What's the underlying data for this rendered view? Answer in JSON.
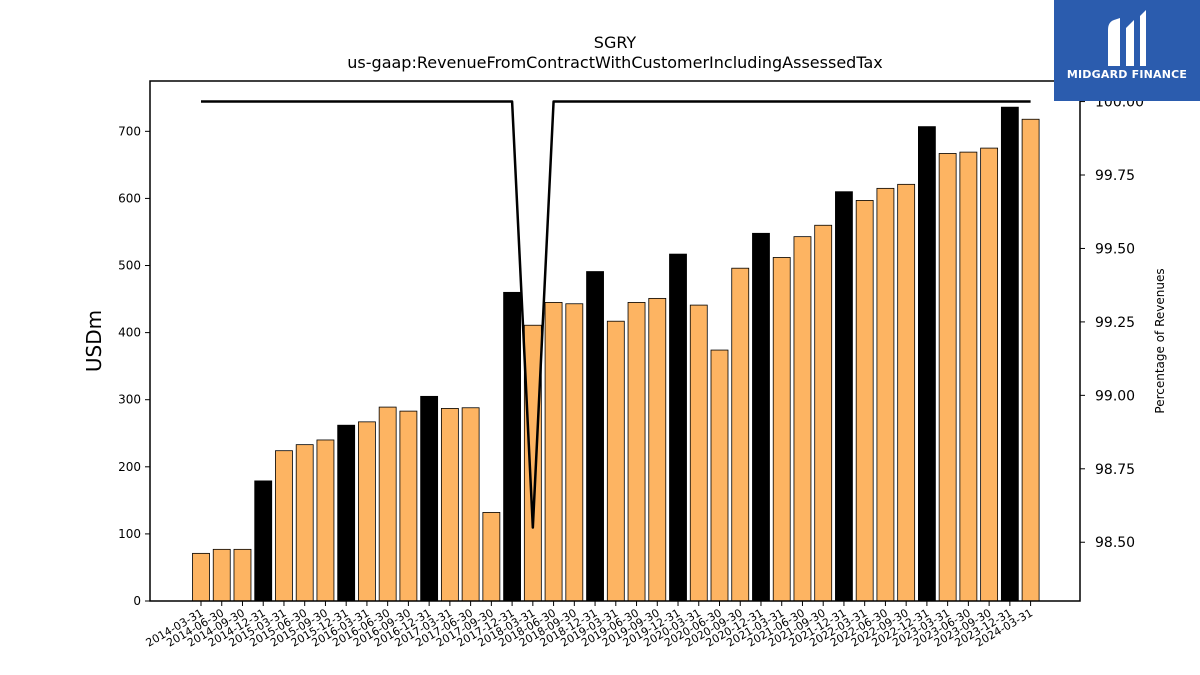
{
  "chart_data": {
    "type": "bar",
    "title": "SGRY",
    "subtitle": "us-gaap:RevenueFromContractWithCustomerIncludingAssessedTax",
    "ylabel": "USDm",
    "ylabel_right": "Percentage of Revenues",
    "ylim": [
      0,
      775
    ],
    "ylim_right": [
      98.3,
      100.07
    ],
    "yticks": [
      0,
      100,
      200,
      300,
      400,
      500,
      600,
      700
    ],
    "yticks_right": [
      "98.50",
      "98.75",
      "99.00",
      "99.25",
      "99.50",
      "99.75",
      "100.00"
    ],
    "categories": [
      "2014-03-31",
      "2014-06-30",
      "2014-09-30",
      "2014-12-31",
      "2015-03-31",
      "2015-06-30",
      "2015-09-30",
      "2015-12-31",
      "2016-03-31",
      "2016-06-30",
      "2016-09-30",
      "2016-12-31",
      "2017-03-31",
      "2017-06-30",
      "2017-09-30",
      "2017-12-31",
      "2018-03-31",
      "2018-06-30",
      "2018-09-30",
      "2018-12-31",
      "2019-03-31",
      "2019-06-30",
      "2019-09-30",
      "2019-12-31",
      "2020-03-31",
      "2020-06-30",
      "2020-09-30",
      "2020-12-31",
      "2021-03-31",
      "2021-06-30",
      "2021-09-30",
      "2021-12-31",
      "2022-03-31",
      "2022-06-30",
      "2022-09-30",
      "2022-12-31",
      "2023-03-31",
      "2023-06-30",
      "2023-09-30",
      "2023-12-31",
      "2024-03-31"
    ],
    "series": [
      {
        "values": [
          71,
          77,
          77,
          179,
          224,
          233,
          240,
          262,
          267,
          289,
          283,
          305,
          287,
          288,
          132,
          460,
          411,
          445,
          443,
          491,
          417,
          445,
          451,
          517,
          441,
          374,
          496,
          548,
          512,
          543,
          560,
          610,
          597,
          615,
          621,
          707,
          667,
          669,
          675,
          736,
          718
        ],
        "highlight": [
          false,
          false,
          false,
          true,
          false,
          false,
          false,
          true,
          false,
          false,
          false,
          true,
          false,
          false,
          false,
          true,
          false,
          false,
          false,
          true,
          false,
          false,
          false,
          true,
          false,
          false,
          false,
          true,
          false,
          false,
          false,
          true,
          false,
          false,
          false,
          true,
          false,
          false,
          false,
          true,
          false
        ]
      },
      {
        "axis": "right",
        "type": "line",
        "values": [
          100,
          100,
          100,
          100,
          100,
          100,
          100,
          100,
          100,
          100,
          100,
          100,
          100,
          100,
          100,
          100,
          98.55,
          100,
          100,
          100,
          100,
          100,
          100,
          100,
          100,
          100,
          100,
          100,
          100,
          100,
          100,
          100,
          100,
          100,
          100,
          100,
          100,
          100,
          100,
          100,
          100
        ]
      }
    ],
    "colors": {
      "bar": "#FDB462",
      "bar_highlight": "#000000",
      "bar_edge": "#000000",
      "line": "#000000"
    }
  },
  "logo": {
    "text": "MIDGARD FINANCE",
    "background": "#2b5cae"
  }
}
